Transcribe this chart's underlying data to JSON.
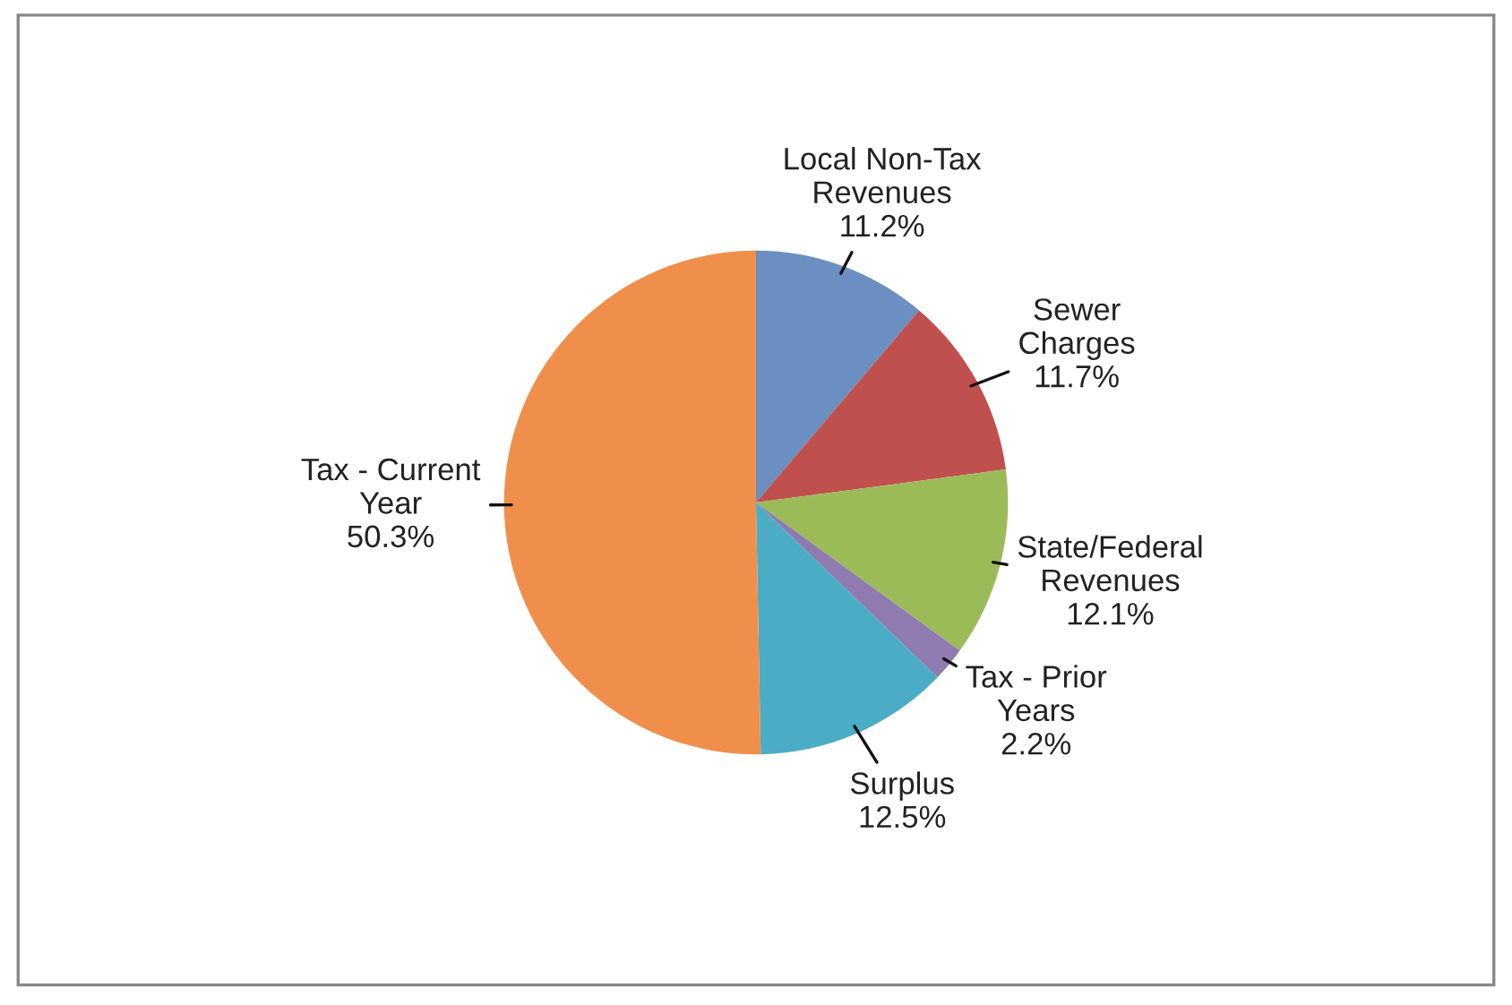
{
  "chart_data": {
    "type": "pie",
    "categories": [
      "Local Non-Tax\nRevenues",
      "Sewer\nCharges",
      "State/Federal\nRevenues",
      "Tax - Prior\nYears",
      "Surplus",
      "Tax - Current\nYear"
    ],
    "values": [
      11.2,
      11.7,
      12.1,
      2.2,
      12.5,
      50.3
    ],
    "value_labels": [
      "11.2%",
      "11.7%",
      "12.1%",
      "2.2%",
      "12.5%",
      "50.3%"
    ],
    "colors": [
      "#6b8fc0",
      "#c0504d",
      "#9bbb59",
      "#8f7bb0",
      "#4bacc6",
      "#f08f4c"
    ]
  }
}
